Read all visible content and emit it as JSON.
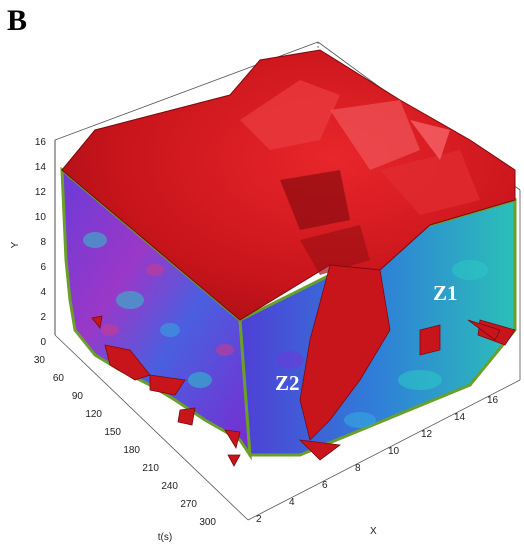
{
  "figure": {
    "panel_label": "B",
    "y_axis": {
      "label": "Y",
      "ticks": [
        "0",
        "2",
        "4",
        "6",
        "8",
        "10",
        "12",
        "14",
        "16"
      ]
    },
    "t_axis": {
      "label": "t(s)",
      "ticks": [
        "30",
        "60",
        "90",
        "120",
        "150",
        "180",
        "210",
        "240",
        "270",
        "300"
      ]
    },
    "x_axis": {
      "label": "X",
      "ticks": [
        "2",
        "4",
        "6",
        "8",
        "10",
        "12",
        "14",
        "16"
      ]
    },
    "zones": [
      "Z1",
      "Z2"
    ],
    "colors": {
      "isosurface": "#c8141b",
      "isosurface_dark": "#7a0a0e",
      "slice_purple": "#7a2bd0",
      "slice_blue": "#3b6de0",
      "slice_cyan": "#2bc6c6",
      "slice_edge": "#6aa02a"
    }
  }
}
